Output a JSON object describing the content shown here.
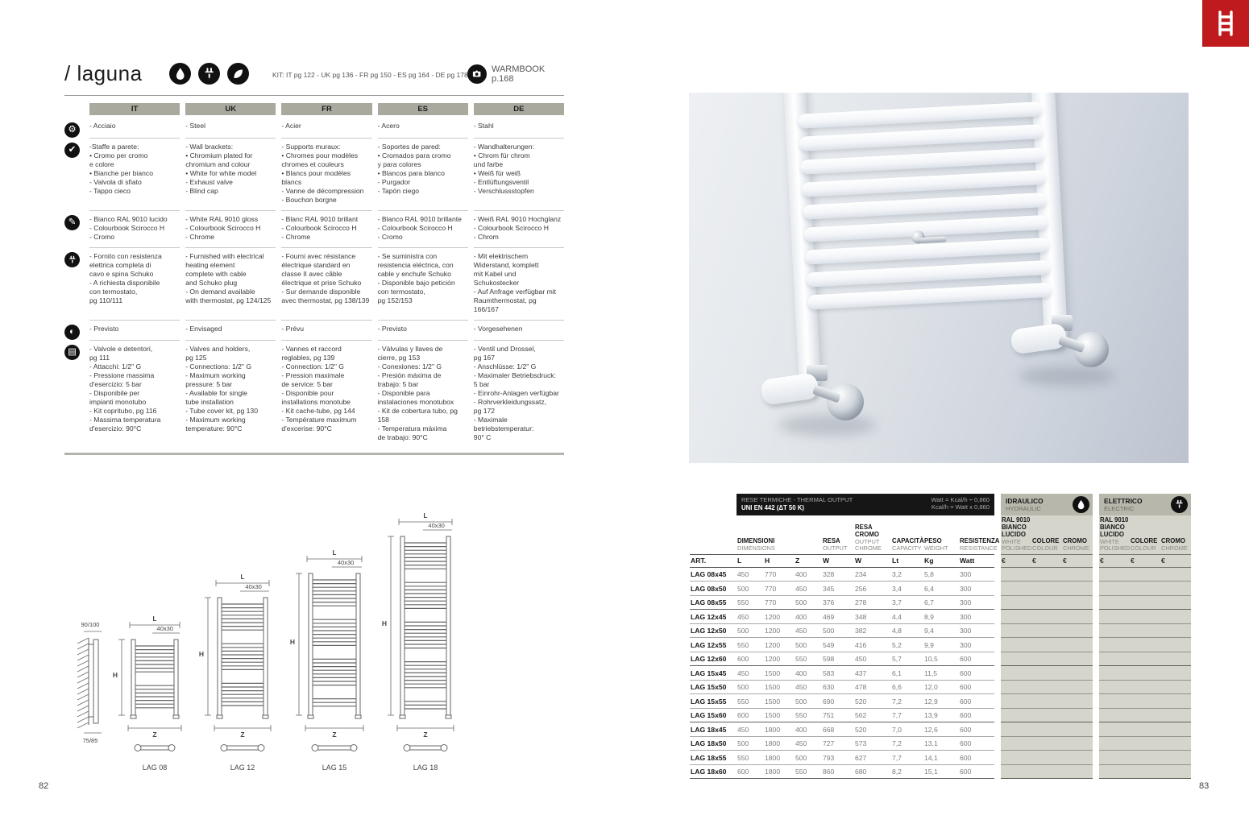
{
  "page": {
    "left_number": "82",
    "right_number": "83"
  },
  "header": {
    "title": "/ laguna",
    "kit_text": "KIT: IT pg 122 - UK pg 136 - FR pg 150 - ES pg 164 - DE pg 178",
    "warmbook_label": "WARMBOOK p.168",
    "top_icons": [
      "water-drop",
      "plug",
      "leaf"
    ]
  },
  "logo": {
    "color": "#bf1a1d"
  },
  "spec_table": {
    "columns": [
      "IT",
      "UK",
      "FR",
      "ES",
      "DE"
    ],
    "rows": [
      {
        "icon": "gear",
        "cells": [
          "- Acciaio",
          "- Steel",
          "- Acier",
          "- Acero",
          "- Stahl"
        ]
      },
      {
        "icon": "check",
        "cells": [
          "-Staffe a parete:\n   • Cromo per cromo\n   e colore\n   • Bianche per bianco\n- Valvola di sfiato\n- Tappo cieco",
          "- Wall brackets:\n   • Chromium plated for\n   chromium and colour\n   • White for white model\n- Exhaust valve\n- Blind cap",
          "- Supports muraux:\n   • Chromes pour modèles\n   chromes et couleurs\n   • Blancs pour modèles\n   blancs\n- Vanne de décompression\n- Bouchon borgne",
          "- Soportes de pared:\n   • Cromados para cromo\n   y para colores\n   • Blancos para blanco\n- Purgador\n- Tapón ciego",
          "- Wandhalterungen:\n   • Chrom für chrom\n   und farbe\n   • Weiß für weiß\n- Entlüftungsventil\n- Verschlussstopfen"
        ]
      },
      {
        "icon": "spray",
        "cells": [
          "- Bianco RAL 9010 lucido\n- Colourbook Scirocco H\n- Cromo",
          "- White RAL 9010 gloss\n- Colourbook Scirocco H\n- Chrome",
          "- Blanc RAL 9010 brillant\n- Colourbook Scirocco H\n- Chrome",
          "- Blanco RAL 9010 brillante\n- Colourbook Scirocco H\n- Cromo",
          "- Weiß RAL 9010 Hochglanz\n- Colourbook Scirocco H\n- Chrom"
        ]
      },
      {
        "icon": "plug",
        "cells": [
          "- Fornito con resistenza\n   elettrica completa di\n   cavo e spina Schuko\n- A richiesta disponibile\n   con termostato,\n   pg 110/111",
          "- Furnished with electrical\n   heating element\n   complete with cable\n   and Schuko plug\n- On demand available\n   with thermostat, pg 124/125",
          "- Fourni avec résistance\n   électrique standard en\n   classe II avec câble\n   électrique et prise Schuko\n- Sur demande disponible\n   avec thermostat, pg 138/139",
          "- Se suministra con\n   resistencia eléctrica, con\n   cable y enchufe Schuko\n- Disponible bajo petición\n   con termostato,\n   pg 152/153",
          "- Mit elektrischem\n   Widerstand, komplett\n   mit Kabel und\n   Schukostecker\n- Auf Anfrage verfügbar mit\n   Raumthermostat, pg 166/167"
        ]
      },
      {
        "icon": "valve",
        "cells": [
          "- Previsto",
          "- Envisaged",
          "- Prévu",
          "- Previsto",
          "- Vorgesehenen"
        ]
      },
      {
        "icon": "book",
        "cells": [
          "- Valvole e detentori,\n   pg 111\n- Attacchi: 1/2\" G\n- Pressione massima\n   d'esercizio: 5 bar\n- Disponibile per\n   impianti monotubo\n- Kit copritubo, pg 116\n- Massima temperatura\n   d'esercizio: 90°C",
          "- Valves and holders,\n   pg 125\n- Connections: 1/2\" G\n- Maximum working\n   pressure: 5 bar\n- Available for single\n   tube installation\n- Tube cover kit, pg 130\n- Maximum working\n   temperature: 90°C",
          "- Vannes et raccord\n   reglables, pg 139\n- Connection: 1/2\" G\n   - Pression maximale\n   de service: 5 bar\n- Disponible pour\n   installations monotube\n- Kit cache-tube, pg 144\n- Température maximum\n   d'excerise: 90°C",
          "- Válvulas y llaves de\n   cierre, pg 153\n- Conexiones: 1/2\" G\n- Presión máxima de\n   trabajo: 5 bar\n- Disponible para\n   instalaciones monotubox\n- Kit de cobertura tubo, pg 158\n- Temperatura máxima\n   de trabajo: 90°C",
          "- Ventil und Drossel,\n   pg 167\n- Anschlüsse: 1/2\" G\n- Maximaler Betriebsdruck:\n   5 bar\n- Einrohr-Anlagen verfügbar\n- Rohrverkleidungssatz,\n   pg 172\n- Maximale betriebstemperatur:\n   90° C"
        ]
      }
    ]
  },
  "diagrams": {
    "side_top_label": "90/100",
    "side_bottom_label": "75/85",
    "length_label": "L",
    "tube_label": "40x30",
    "height_label": "H",
    "depth_label": "Z",
    "models": [
      "LAG 08",
      "LAG 12",
      "LAG 15",
      "LAG 18"
    ]
  },
  "output_table": {
    "band": {
      "title_line1": "RESE TERMICHE - THERMAL OUTPUT",
      "title_line2": "UNI EN 442 (ΔT 50 K)",
      "formula_line1": "Watt = Kcal/h ÷ 0,860",
      "formula_line2": "Kcal/h = Watt x 0,860"
    },
    "sections": [
      {
        "title": "IDRAULICO",
        "subtitle": "HYDRAULIC",
        "icon": "water-drop"
      },
      {
        "title": "ELETTRICO",
        "subtitle": "ELECTRIC",
        "icon": "plug"
      }
    ],
    "art_label": "ART.",
    "col_groups": [
      {
        "l1": "DIMENSIONI",
        "l2": "DIMENSIONS"
      },
      {
        "l1": "RESA",
        "l2": "OUTPUT"
      },
      {
        "l1": "RESA\nCROMO",
        "l2": "OUTPUT\nCHROME"
      },
      {
        "l1": "CAPACITÀ",
        "l2": "CAPACITY"
      },
      {
        "l1": "PESO",
        "l2": "WEIGHT"
      },
      {
        "l1": "RESISTENZA",
        "l2": "RESISTANCE"
      }
    ],
    "price_columns": [
      {
        "l1": "RAL 9010\nBIANCO\nLUCIDO",
        "l2": "WHITE\nPOLISHED"
      },
      {
        "l1": "COLORE",
        "l2": "COLOUR"
      },
      {
        "l1": "CROMO",
        "l2": "CHROME"
      }
    ],
    "units": [
      "L",
      "H",
      "Z",
      "W",
      "W",
      "Lt",
      "Kg",
      "Watt"
    ],
    "currency": "€",
    "rows": [
      [
        "LAG 08x45",
        "450",
        "770",
        "400",
        "328",
        "234",
        "3,2",
        "5,8",
        "300"
      ],
      [
        "LAG 08x50",
        "500",
        "770",
        "450",
        "345",
        "256",
        "3,4",
        "6,4",
        "300"
      ],
      [
        "LAG 08x55",
        "550",
        "770",
        "500",
        "376",
        "278",
        "3,7",
        "6,7",
        "300"
      ],
      [
        "LAG 12x45",
        "450",
        "1200",
        "400",
        "469",
        "348",
        "4,4",
        "8,9",
        "300"
      ],
      [
        "LAG 12x50",
        "500",
        "1200",
        "450",
        "500",
        "382",
        "4,8",
        "9,4",
        "300"
      ],
      [
        "LAG 12x55",
        "550",
        "1200",
        "500",
        "549",
        "416",
        "5,2",
        "9,9",
        "300"
      ],
      [
        "LAG 12x60",
        "600",
        "1200",
        "550",
        "598",
        "450",
        "5,7",
        "10,5",
        "600"
      ],
      [
        "LAG 15x45",
        "450",
        "1500",
        "400",
        "583",
        "437",
        "6,1",
        "11,5",
        "600"
      ],
      [
        "LAG 15x50",
        "500",
        "1500",
        "450",
        "630",
        "478",
        "6,6",
        "12,0",
        "600"
      ],
      [
        "LAG 15x55",
        "550",
        "1500",
        "500",
        "690",
        "520",
        "7,2",
        "12,9",
        "600"
      ],
      [
        "LAG 15x60",
        "600",
        "1500",
        "550",
        "751",
        "562",
        "7,7",
        "13,9",
        "600"
      ],
      [
        "LAG 18x45",
        "450",
        "1800",
        "400",
        "668",
        "520",
        "7,0",
        "12,6",
        "600"
      ],
      [
        "LAG 18x50",
        "500",
        "1800",
        "450",
        "727",
        "573",
        "7,2",
        "13,1",
        "600"
      ],
      [
        "LAG 18x55",
        "550",
        "1800",
        "500",
        "793",
        "627",
        "7,7",
        "14,1",
        "600"
      ],
      [
        "LAG 18x60",
        "600",
        "1800",
        "550",
        "860",
        "680",
        "8,2",
        "15,1",
        "600"
      ]
    ],
    "group_breaks": [
      2,
      6,
      10,
      14
    ]
  }
}
